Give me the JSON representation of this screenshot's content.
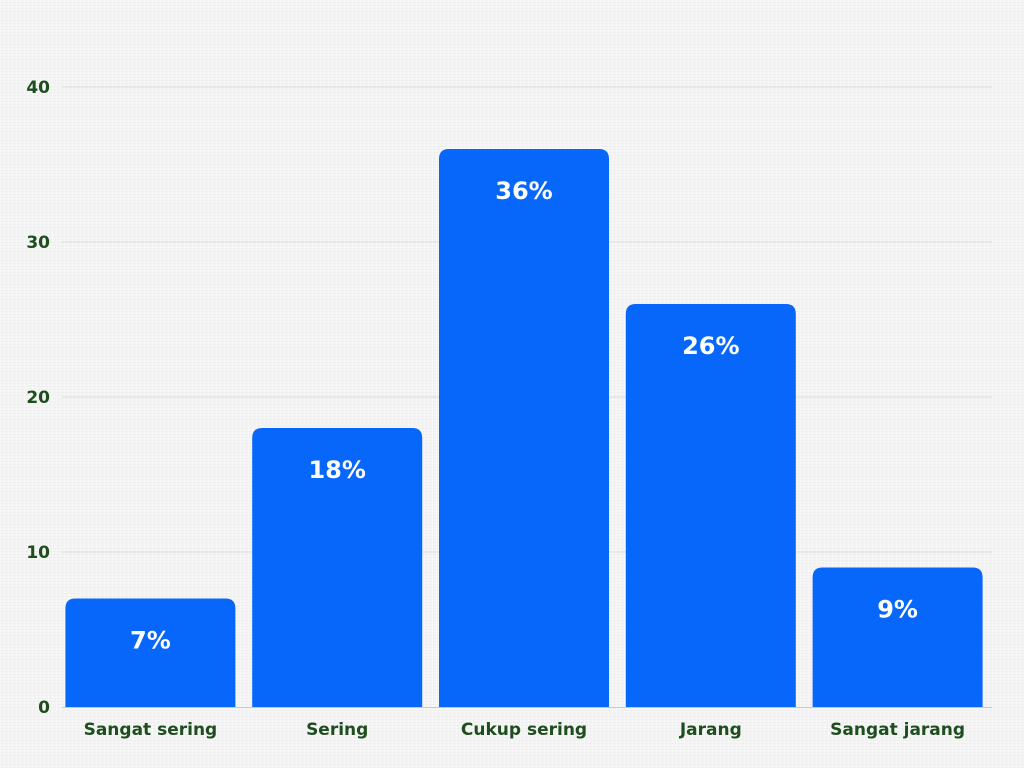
{
  "chart_data": {
    "type": "bar",
    "categories": [
      "Sangat sering",
      "Sering",
      "Cukup sering",
      "Jarang",
      "Sangat jarang"
    ],
    "values": [
      7,
      18,
      36,
      26,
      9
    ],
    "data_labels": [
      "7%",
      "18%",
      "36%",
      "26%",
      "9%"
    ],
    "y_ticks": [
      0,
      10,
      20,
      30,
      40
    ],
    "ylim": [
      0,
      40
    ],
    "grid": true,
    "legend": "none",
    "title": "",
    "xlabel": "",
    "ylabel": ""
  },
  "colors": {
    "bar": "#0767fb",
    "axis_text": "#1e4d1e"
  }
}
